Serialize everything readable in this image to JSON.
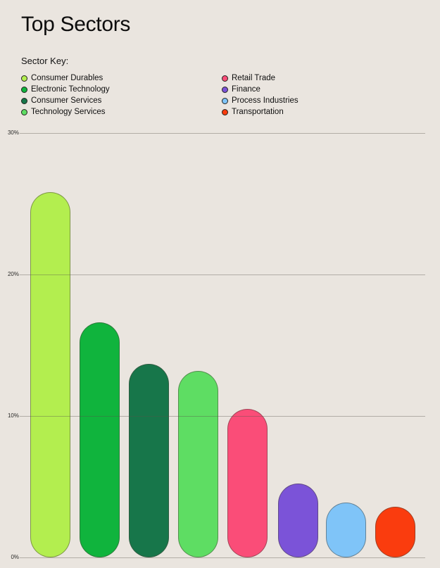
{
  "page": {
    "title": "Top Sectors"
  },
  "legend": {
    "title": "Sector Key:",
    "columns": [
      {
        "items": [
          {
            "label": "Consumer Durables",
            "color": "#b3ee4f"
          },
          {
            "label": "Electronic Technology",
            "color": "#10b43d"
          },
          {
            "label": "Consumer Services",
            "color": "#17764a"
          },
          {
            "label": "Technology Services",
            "color": "#5edd63"
          }
        ]
      },
      {
        "items": [
          {
            "label": "Retail Trade",
            "color": "#fa4d78"
          },
          {
            "label": "Finance",
            "color": "#7b53d8"
          },
          {
            "label": "Process Industries",
            "color": "#7fc4f8"
          },
          {
            "label": "Transportation",
            "color": "#fa3c0e"
          }
        ]
      }
    ]
  },
  "chart_data": {
    "type": "bar",
    "title": "Top Sectors",
    "categories": [
      "Consumer Durables",
      "Electronic Technology",
      "Consumer Services",
      "Technology Services",
      "Retail Trade",
      "Finance",
      "Process Industries",
      "Transportation"
    ],
    "values": [
      25.8,
      16.6,
      13.7,
      13.2,
      10.5,
      5.2,
      3.9,
      3.6
    ],
    "unit": "%",
    "colors": [
      "#b3ee4f",
      "#10b43d",
      "#17764a",
      "#5edd63",
      "#fa4d78",
      "#7b53d8",
      "#7fc4f8",
      "#fa3c0e"
    ],
    "xlabel": "",
    "ylabel": "",
    "ylim": [
      0,
      30
    ],
    "yticks": [
      {
        "label": "30%",
        "value": 30
      },
      {
        "label": "20%",
        "value": 20
      },
      {
        "label": "10%",
        "value": 10
      },
      {
        "label": "0%",
        "value": 0
      }
    ],
    "grid": true,
    "gridlines_over_bars": true,
    "legend_position": "top-left",
    "background_color": "#eae5df"
  }
}
